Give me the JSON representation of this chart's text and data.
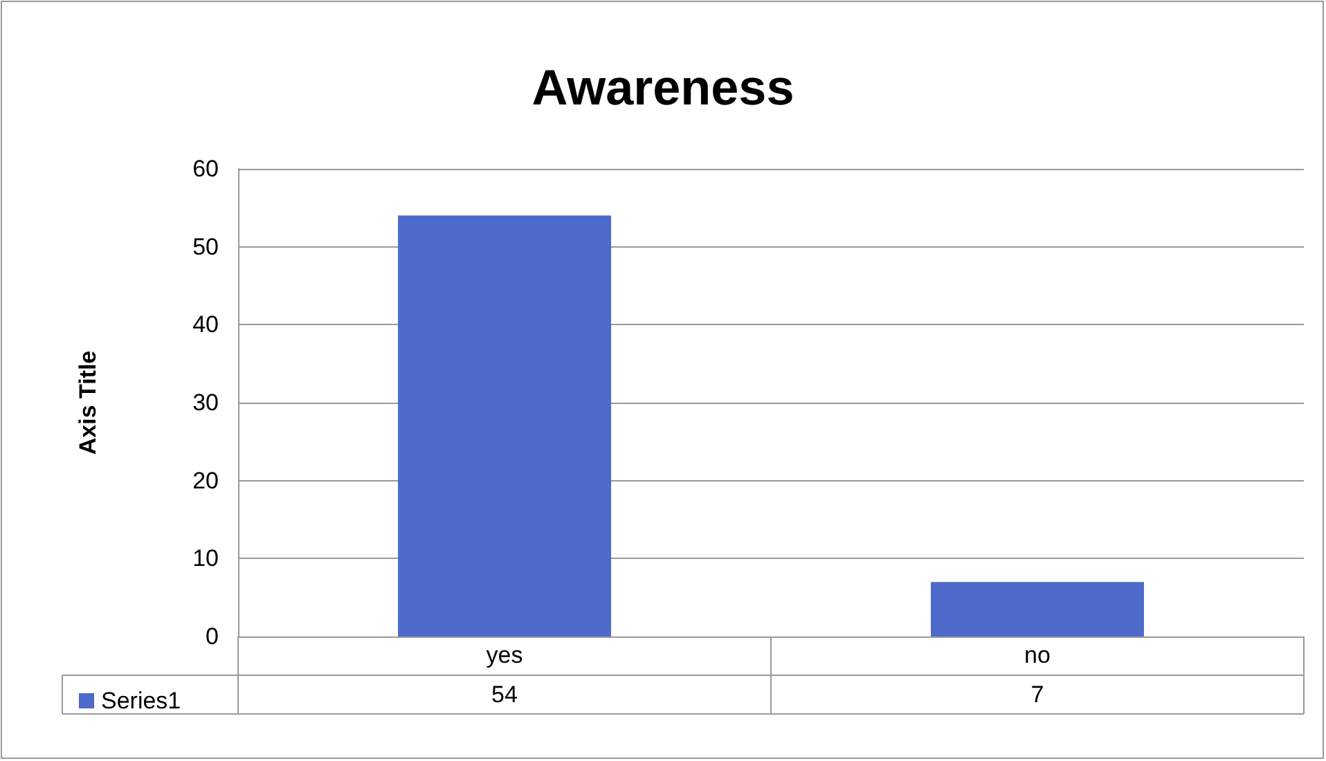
{
  "chart_data": {
    "type": "bar",
    "title": "Awareness",
    "ylabel": "Axis Title",
    "categories": [
      "yes",
      "no"
    ],
    "series": [
      {
        "name": "Series1",
        "color": "#4e6bcb",
        "values": [
          54,
          7
        ]
      }
    ],
    "ylim": [
      0,
      60
    ],
    "yticks": [
      0,
      10,
      20,
      30,
      40,
      50,
      60
    ],
    "grid": "y",
    "legend": "bottom",
    "data_labels": true
  }
}
